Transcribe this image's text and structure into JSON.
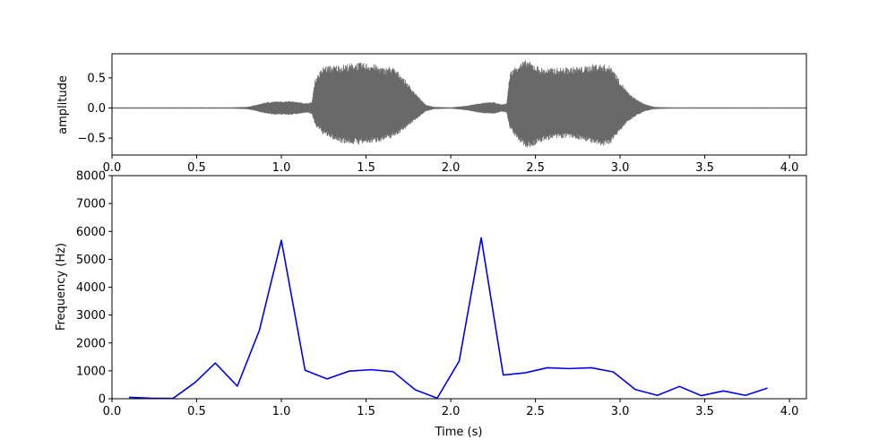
{
  "chart_data": [
    {
      "type": "area",
      "xlabel": "",
      "ylabel": "amplitude",
      "xlim": [
        0.0,
        4.1
      ],
      "ylim": [
        -0.78,
        0.9
      ],
      "x_ticks": [
        "0.0",
        "0.5",
        "1.0",
        "1.5",
        "2.0",
        "2.5",
        "3.0",
        "3.5",
        "4.0"
      ],
      "x_tick_values": [
        0.0,
        0.5,
        1.0,
        1.5,
        2.0,
        2.5,
        3.0,
        3.5,
        4.0
      ],
      "y_ticks": [
        "0.5",
        "0.0",
        "−0.5"
      ],
      "y_tick_values": [
        0.5,
        0.0,
        -0.5
      ],
      "color": "#696969",
      "envelope_x": [
        0.0,
        0.1,
        0.2,
        0.3,
        0.4,
        0.5,
        0.6,
        0.7,
        0.8,
        0.85,
        0.9,
        0.95,
        1.0,
        1.05,
        1.1,
        1.15,
        1.18,
        1.2,
        1.25,
        1.3,
        1.35,
        1.4,
        1.45,
        1.5,
        1.55,
        1.6,
        1.65,
        1.7,
        1.75,
        1.8,
        1.85,
        1.9,
        2.0,
        2.1,
        2.15,
        2.2,
        2.25,
        2.3,
        2.33,
        2.35,
        2.4,
        2.45,
        2.5,
        2.55,
        2.6,
        2.7,
        2.8,
        2.85,
        2.9,
        2.95,
        3.0,
        3.05,
        3.1,
        3.15,
        3.2,
        3.3,
        3.5,
        3.7,
        3.9,
        4.1
      ],
      "envelope_upper": [
        0.01,
        0.01,
        0.01,
        0.01,
        0.01,
        0.01,
        0.01,
        0.01,
        0.02,
        0.05,
        0.09,
        0.11,
        0.11,
        0.12,
        0.1,
        0.08,
        0.1,
        0.5,
        0.7,
        0.71,
        0.72,
        0.74,
        0.76,
        0.75,
        0.73,
        0.67,
        0.7,
        0.58,
        0.4,
        0.22,
        0.06,
        0.02,
        0.01,
        0.04,
        0.07,
        0.09,
        0.1,
        0.06,
        0.08,
        0.6,
        0.75,
        0.8,
        0.72,
        0.66,
        0.67,
        0.68,
        0.7,
        0.74,
        0.73,
        0.7,
        0.45,
        0.25,
        0.14,
        0.06,
        0.02,
        0.01,
        0.01,
        0.01,
        0.01,
        0.01
      ],
      "envelope_lower": [
        -0.01,
        -0.01,
        -0.01,
        -0.01,
        -0.01,
        -0.01,
        -0.01,
        -0.01,
        -0.02,
        -0.05,
        -0.09,
        -0.11,
        -0.11,
        -0.12,
        -0.1,
        -0.08,
        -0.1,
        -0.3,
        -0.45,
        -0.52,
        -0.58,
        -0.6,
        -0.61,
        -0.6,
        -0.58,
        -0.55,
        -0.5,
        -0.42,
        -0.3,
        -0.18,
        -0.06,
        -0.02,
        -0.01,
        -0.04,
        -0.07,
        -0.09,
        -0.1,
        -0.06,
        -0.08,
        -0.35,
        -0.55,
        -0.68,
        -0.62,
        -0.55,
        -0.52,
        -0.5,
        -0.55,
        -0.62,
        -0.65,
        -0.58,
        -0.38,
        -0.22,
        -0.12,
        -0.05,
        -0.02,
        -0.01,
        -0.01,
        -0.01,
        -0.01,
        -0.01
      ]
    },
    {
      "type": "line",
      "xlabel": "Time (s)",
      "ylabel": "Frequency (Hz)",
      "xlim": [
        0.0,
        4.1
      ],
      "ylim": [
        0,
        8000
      ],
      "x_ticks": [
        "0.0",
        "0.5",
        "1.0",
        "1.5",
        "2.0",
        "2.5",
        "3.0",
        "3.5",
        "4.0"
      ],
      "x_tick_values": [
        0.0,
        0.5,
        1.0,
        1.5,
        2.0,
        2.5,
        3.0,
        3.5,
        4.0
      ],
      "y_ticks": [
        "0",
        "1000",
        "2000",
        "3000",
        "4000",
        "5000",
        "6000",
        "7000",
        "8000"
      ],
      "y_tick_values": [
        0,
        1000,
        2000,
        3000,
        4000,
        5000,
        6000,
        7000,
        8000
      ],
      "color": "#0000ee",
      "x": [
        0.1,
        0.23,
        0.36,
        0.49,
        0.61,
        0.74,
        0.87,
        1.0,
        1.14,
        1.27,
        1.4,
        1.53,
        1.66,
        1.79,
        1.92,
        2.05,
        2.18,
        2.31,
        2.44,
        2.57,
        2.7,
        2.83,
        2.96,
        3.09,
        3.22,
        3.35,
        3.48,
        3.61,
        3.74,
        3.87
      ],
      "y": [
        50,
        20,
        10,
        580,
        1280,
        450,
        2450,
        5680,
        1020,
        710,
        990,
        1040,
        970,
        320,
        20,
        1350,
        5770,
        850,
        930,
        1110,
        1080,
        1110,
        960,
        330,
        120,
        440,
        110,
        280,
        120,
        380
      ]
    }
  ]
}
